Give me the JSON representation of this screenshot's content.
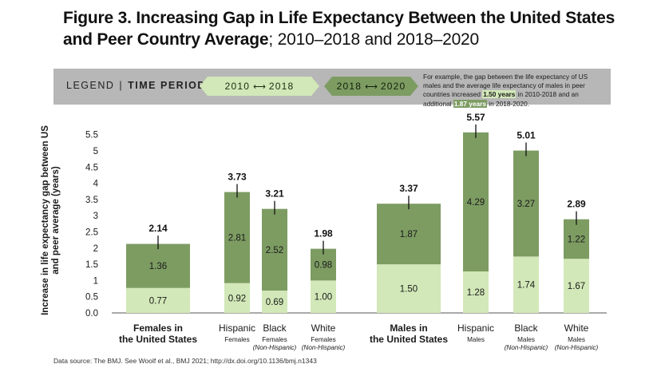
{
  "title": {
    "bold": "Figure 3. Increasing Gap in Life Expectancy Between the United States and Peer Country Average",
    "regular": "; 2010–2018 and 2018–2020"
  },
  "legend": {
    "label_prefix": "LEGEND",
    "label_main": "TIME PERIODS",
    "period1_start": "2010",
    "period1_end": "2018",
    "period2_start": "2018",
    "period2_end": "2020",
    "note_text": "For example, the gap between the life expectancy of US males and the average life expectancy of males in peer countries increased",
    "note_value1": "1.50 years",
    "note_mid": "in 2010-2018 and an additional",
    "note_value2": "1.87 years",
    "note_end": "in 2018-2020."
  },
  "ylabel": "Increase in life expectancy gap between US and peer average (years)",
  "source": "Data source: The BMJ. See Woolf et al., BMJ 2021; http://dx.doi.org/10.1136/bmj.n1343",
  "colors": {
    "period1": "#d2e8b8",
    "period2": "#7d9c62",
    "legend_bg": "#b7b7b7"
  },
  "chart_data": {
    "type": "bar",
    "stacked": true,
    "ylabel": "Increase in life expectancy gap between US and peer average (years)",
    "ylim": [
      0,
      5.5
    ],
    "yticks": [
      "0.0",
      "0.5",
      "1",
      "1.5",
      "2",
      "2.5",
      "3",
      "3.5",
      "4",
      "4.5",
      "5",
      "5.5"
    ],
    "series": [
      {
        "name": "2010–2018",
        "color": "#d2e8b8",
        "values": [
          0.77,
          0.92,
          0.69,
          1.0,
          1.5,
          1.28,
          1.74,
          1.67
        ],
        "labels": [
          "0.77",
          "0.92",
          "0.69",
          "1.00",
          "1.50",
          "1.28",
          "1.74",
          "1.67"
        ]
      },
      {
        "name": "2018–2020",
        "color": "#7d9c62",
        "values": [
          1.36,
          2.81,
          2.52,
          0.98,
          1.87,
          4.29,
          3.27,
          1.22
        ],
        "labels": [
          "1.36",
          "2.81",
          "2.52",
          "0.98",
          "1.87",
          "4.29",
          "3.27",
          "1.22"
        ]
      }
    ],
    "totals": [
      2.14,
      3.73,
      3.21,
      1.98,
      3.37,
      5.57,
      5.01,
      2.89
    ],
    "total_labels": [
      "2.14",
      "3.73",
      "3.21",
      "1.98",
      "3.37",
      "5.57",
      "5.01",
      "2.89"
    ],
    "categories": [
      {
        "lines": [
          "Females in",
          "the United States"
        ],
        "bold": true,
        "sub": []
      },
      {
        "lines": [
          "Hispanic"
        ],
        "bold": false,
        "sub": [
          "Females"
        ]
      },
      {
        "lines": [
          "Black"
        ],
        "bold": false,
        "sub": [
          "Females",
          "(Non-Hispanic)"
        ]
      },
      {
        "lines": [
          "White"
        ],
        "bold": false,
        "sub": [
          "Females",
          "(Non-Hispanic)"
        ]
      },
      {
        "lines": [
          "Males in",
          "the United States"
        ],
        "bold": true,
        "sub": []
      },
      {
        "lines": [
          "Hispanic"
        ],
        "bold": false,
        "sub": [
          "Males"
        ]
      },
      {
        "lines": [
          "Black"
        ],
        "bold": false,
        "sub": [
          "Males",
          "(Non-Hispanic)"
        ]
      },
      {
        "lines": [
          "White"
        ],
        "bold": false,
        "sub": [
          "Males",
          "(Non-Hispanic)"
        ]
      }
    ],
    "grid": false,
    "legend_position": "top"
  }
}
